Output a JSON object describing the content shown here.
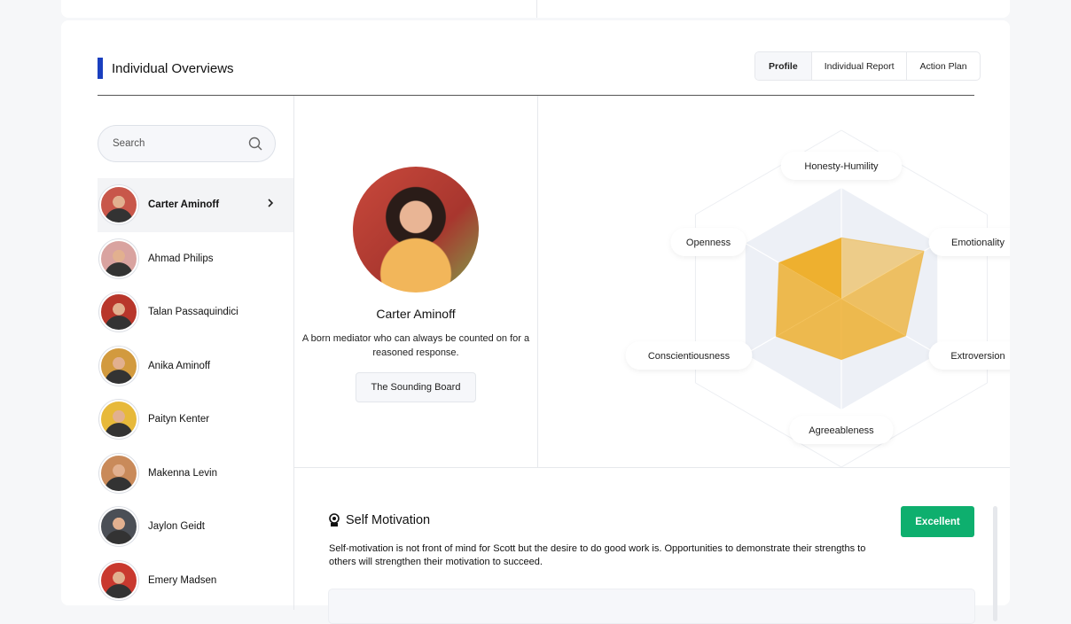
{
  "header": {
    "title": "Individual Overviews",
    "tabs": [
      {
        "label": "Profile",
        "active": true
      },
      {
        "label": "Individual Report"
      },
      {
        "label": "Action Plan"
      }
    ],
    "accent": "#1a3fbf"
  },
  "sidebar": {
    "search_placeholder": "Search",
    "people": [
      {
        "name": "Carter Aminoff",
        "selected": true,
        "color": "#c8574a"
      },
      {
        "name": "Ahmad Philips",
        "color": "#d9a3a0"
      },
      {
        "name": "Talan Passaquindici",
        "color": "#b8362b"
      },
      {
        "name": "Anika Aminoff",
        "color": "#d29a3e"
      },
      {
        "name": "Paityn Kenter",
        "color": "#e7b93a"
      },
      {
        "name": "Makenna Levin",
        "color": "#c98a5a"
      },
      {
        "name": "Jaylon Geidt",
        "color": "#4b4f56"
      },
      {
        "name": "Emery Madsen",
        "color": "#c9392f"
      }
    ]
  },
  "profile": {
    "name": "Carter Aminoff",
    "description": "A born mediator who can always be counted on for a reasoned response.",
    "badge": "The Sounding Board"
  },
  "chart_data": {
    "type": "radar",
    "axes": [
      "Honesty-Humility",
      "Emotionality",
      "Extroversion",
      "Agreeableness",
      "Conscientiousness",
      "Openness"
    ],
    "values": [
      0.55,
      0.86,
      0.67,
      0.55,
      0.68,
      0.65
    ],
    "range": [
      0,
      1
    ],
    "color": "#eda81a"
  },
  "section": {
    "icon": "head-gear-icon",
    "title": "Self Motivation",
    "rating": "Excellent",
    "rating_color": "#0eaf6e",
    "text": "Self-motivation is not front of mind for Scott but the desire to do good work is. Opportunities to demonstrate their strengths to others will strengthen their motivation to succeed."
  }
}
